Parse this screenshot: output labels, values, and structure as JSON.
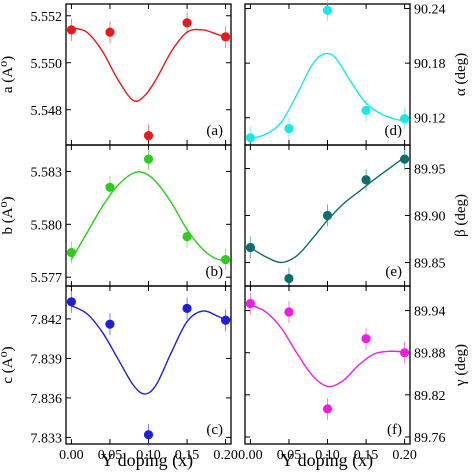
{
  "xaxis": {
    "label": "Y doping (x)",
    "ticks": [
      0.0,
      0.05,
      0.1,
      0.15,
      0.2
    ],
    "tick_labels": [
      "0.00",
      "0.05",
      "0.10",
      "0.15",
      "0.20"
    ],
    "range": [
      -0.007,
      0.207
    ]
  },
  "chart_data": [
    {
      "id": "a",
      "type": "scatter",
      "tag": "(a)",
      "ylabel": "a (A⁰)",
      "ylabel_side": "left",
      "ylim": [
        5.5465,
        5.5525
      ],
      "yticks": [
        5.548,
        5.55,
        5.552
      ],
      "ytick_labels": [
        "5.548",
        "5.550",
        "5.552"
      ],
      "color": "#e41a1c",
      "x": [
        0.0,
        0.05,
        0.1,
        0.15,
        0.2
      ],
      "y": [
        5.5514,
        5.5513,
        5.5469,
        5.5517,
        5.5511
      ],
      "fit": [
        [
          0.0,
          5.5515
        ],
        [
          0.02,
          5.5513
        ],
        [
          0.04,
          5.5505
        ],
        [
          0.06,
          5.5493
        ],
        [
          0.08,
          5.5484
        ],
        [
          0.095,
          5.5486
        ],
        [
          0.11,
          5.5493
        ],
        [
          0.13,
          5.5505
        ],
        [
          0.15,
          5.5513
        ],
        [
          0.17,
          5.5514
        ],
        [
          0.19,
          5.5512
        ],
        [
          0.2,
          5.5511
        ]
      ]
    },
    {
      "id": "b",
      "type": "scatter",
      "tag": "(b)",
      "ylabel": "b (A⁰)",
      "ylabel_side": "left",
      "ylim": [
        5.5765,
        5.5845
      ],
      "yticks": [
        5.577,
        5.58,
        5.583
      ],
      "ytick_labels": [
        "5.577",
        "5.580",
        "5.583"
      ],
      "color": "#2ecc1f",
      "x": [
        0.0,
        0.05,
        0.1,
        0.15,
        0.2
      ],
      "y": [
        5.5784,
        5.5821,
        5.5837,
        5.5793,
        5.578
      ],
      "fit": [
        [
          0.0,
          5.578
        ],
        [
          0.02,
          5.5795
        ],
        [
          0.04,
          5.581
        ],
        [
          0.06,
          5.5822
        ],
        [
          0.08,
          5.5829
        ],
        [
          0.095,
          5.5829
        ],
        [
          0.11,
          5.5824
        ],
        [
          0.13,
          5.5812
        ],
        [
          0.15,
          5.5797
        ],
        [
          0.17,
          5.5786
        ],
        [
          0.185,
          5.5781
        ],
        [
          0.2,
          5.5779
        ]
      ]
    },
    {
      "id": "c",
      "type": "scatter",
      "tag": "(c)",
      "ylabel": "c (A⁰)",
      "ylabel_side": "left",
      "ylim": [
        7.8325,
        7.8445
      ],
      "yticks": [
        7.833,
        7.836,
        7.839,
        7.842
      ],
      "ytick_labels": [
        "7.833",
        "7.836",
        "7.839",
        "7.842"
      ],
      "color": "#1f1fd6",
      "x": [
        0.0,
        0.05,
        0.1,
        0.15,
        0.2
      ],
      "y": [
        7.8433,
        7.8416,
        7.8332,
        7.8428,
        7.8419
      ],
      "fit": [
        [
          0.0,
          7.843
        ],
        [
          0.02,
          7.8424
        ],
        [
          0.04,
          7.841
        ],
        [
          0.06,
          7.839
        ],
        [
          0.08,
          7.837
        ],
        [
          0.095,
          7.8363
        ],
        [
          0.11,
          7.837
        ],
        [
          0.13,
          7.8395
        ],
        [
          0.15,
          7.8418
        ],
        [
          0.17,
          7.8426
        ],
        [
          0.19,
          7.8422
        ],
        [
          0.2,
          7.8419
        ]
      ]
    },
    {
      "id": "d",
      "type": "scatter",
      "tag": "(d)",
      "ylabel": "α (deg)",
      "ylabel_side": "right",
      "ylim": [
        90.09,
        90.245
      ],
      "yticks": [
        90.12,
        90.18,
        90.24
      ],
      "ytick_labels": [
        "90.12",
        "90.18",
        "90.24"
      ],
      "color": "#1ee6e6",
      "x": [
        0.0,
        0.05,
        0.1,
        0.15,
        0.2
      ],
      "y": [
        90.098,
        90.108,
        90.238,
        90.128,
        90.119
      ],
      "fit": [
        [
          0.0,
          90.097
        ],
        [
          0.02,
          90.102
        ],
        [
          0.04,
          90.115
        ],
        [
          0.06,
          90.145
        ],
        [
          0.08,
          90.178
        ],
        [
          0.095,
          90.19
        ],
        [
          0.11,
          90.186
        ],
        [
          0.13,
          90.16
        ],
        [
          0.15,
          90.136
        ],
        [
          0.17,
          90.124
        ],
        [
          0.19,
          90.118
        ],
        [
          0.2,
          90.117
        ]
      ]
    },
    {
      "id": "e",
      "type": "scatter",
      "tag": "(e)",
      "ylabel": "β (deg)",
      "ylabel_side": "right",
      "ylim": [
        89.825,
        89.975
      ],
      "yticks": [
        89.85,
        89.9,
        89.95
      ],
      "ytick_labels": [
        "89.85",
        "89.90",
        "89.95"
      ],
      "color": "#0e6e6a",
      "x": [
        0.0,
        0.05,
        0.1,
        0.15,
        0.2
      ],
      "y": [
        89.866,
        89.833,
        89.9,
        89.938,
        89.96
      ],
      "fit": [
        [
          0.0,
          89.866
        ],
        [
          0.02,
          89.856
        ],
        [
          0.04,
          89.85
        ],
        [
          0.06,
          89.857
        ],
        [
          0.08,
          89.875
        ],
        [
          0.1,
          89.895
        ],
        [
          0.12,
          89.912
        ],
        [
          0.14,
          89.925
        ],
        [
          0.16,
          89.938
        ],
        [
          0.18,
          89.95
        ],
        [
          0.2,
          89.962
        ]
      ]
    },
    {
      "id": "f",
      "type": "scatter",
      "tag": "(f)",
      "ylabel": "γ (deg)",
      "ylabel_side": "right",
      "ylim": [
        89.75,
        89.975
      ],
      "yticks": [
        89.76,
        89.82,
        89.88,
        89.94
      ],
      "ytick_labels": [
        "89.76",
        "89.82",
        "89.88",
        "89.94"
      ],
      "color": "#ee1ee0",
      "x": [
        0.0,
        0.05,
        0.1,
        0.15,
        0.2
      ],
      "y": [
        89.95,
        89.938,
        89.8,
        89.9,
        89.88
      ],
      "fit": [
        [
          0.0,
          89.948
        ],
        [
          0.02,
          89.938
        ],
        [
          0.04,
          89.915
        ],
        [
          0.06,
          89.88
        ],
        [
          0.08,
          89.848
        ],
        [
          0.1,
          89.832
        ],
        [
          0.12,
          89.84
        ],
        [
          0.14,
          89.862
        ],
        [
          0.16,
          89.878
        ],
        [
          0.18,
          89.882
        ],
        [
          0.2,
          89.881
        ]
      ]
    }
  ]
}
